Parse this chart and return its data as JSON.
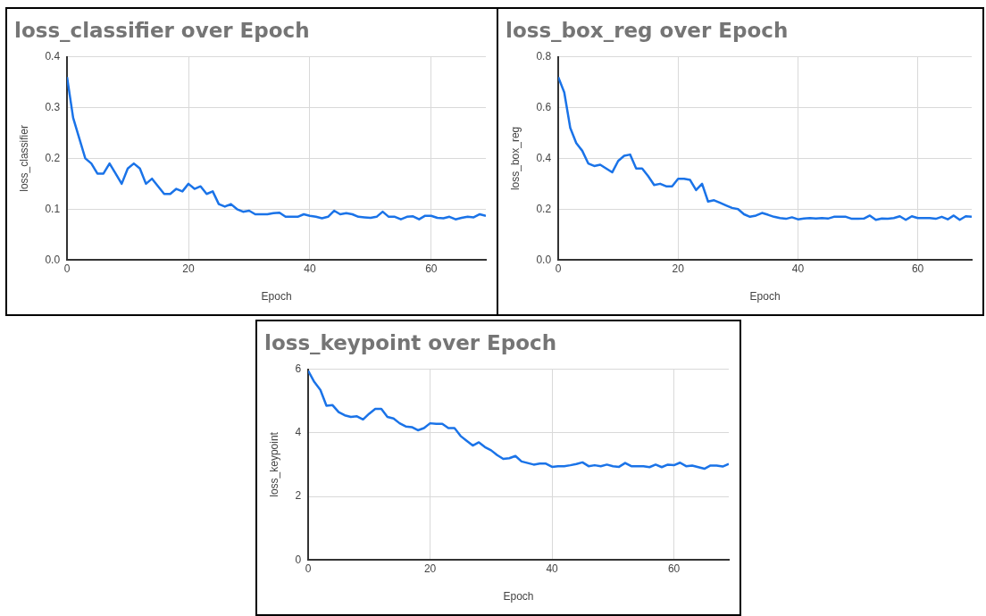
{
  "chart_data": [
    {
      "type": "line",
      "title": "loss_classifier over Epoch",
      "xlabel": "Epoch",
      "ylabel": "loss_classifier",
      "xlim": [
        0,
        69
      ],
      "xticks": [
        0,
        20,
        40,
        60
      ],
      "ylim": [
        0,
        0.4
      ],
      "yticks": [
        {
          "value": 0,
          "label": "0.0"
        },
        {
          "value": 0.1,
          "label": "0.1"
        },
        {
          "value": 0.2,
          "label": "0.2"
        },
        {
          "value": 0.3,
          "label": "0.3"
        },
        {
          "value": 0.4,
          "label": "0.4"
        }
      ],
      "grid": true,
      "legend": false,
      "marker": "none",
      "line_style": "solid",
      "x": [
        0,
        1,
        2,
        3,
        4,
        5,
        6,
        7,
        8,
        9,
        10,
        11,
        12,
        13,
        14,
        15,
        16,
        17,
        18,
        19,
        20,
        21,
        22,
        23,
        24,
        25,
        26,
        27,
        28,
        29,
        30,
        31,
        32,
        33,
        34,
        35,
        36,
        37,
        38,
        39,
        40,
        41,
        42,
        43,
        44,
        45,
        46,
        47,
        48,
        49,
        50,
        51,
        52,
        53,
        54,
        55,
        56,
        57,
        58,
        59,
        60,
        61,
        62,
        63,
        64,
        65,
        66,
        67,
        68,
        69
      ],
      "series": [
        {
          "color": "#1a73e8",
          "values": [
            0.36,
            0.28,
            0.24,
            0.2,
            0.19,
            0.17,
            0.17,
            0.19,
            0.17,
            0.15,
            0.18,
            0.19,
            0.18,
            0.15,
            0.16,
            0.145,
            0.13,
            0.13,
            0.14,
            0.135,
            0.15,
            0.14,
            0.145,
            0.13,
            0.135,
            0.11,
            0.105,
            0.11,
            0.1,
            0.095,
            0.097,
            0.09,
            0.09,
            0.09,
            0.092,
            0.093,
            0.085,
            0.085,
            0.085,
            0.09,
            0.087,
            0.085,
            0.082,
            0.085,
            0.097,
            0.09,
            0.092,
            0.09,
            0.085,
            0.084,
            0.083,
            0.085,
            0.095,
            0.085,
            0.085,
            0.08,
            0.085,
            0.086,
            0.08,
            0.087,
            0.087,
            0.083,
            0.082,
            0.085,
            0.08,
            0.083,
            0.085,
            0.084,
            0.09,
            0.087
          ]
        }
      ]
    },
    {
      "type": "line",
      "title": "loss_box_reg over Epoch",
      "xlabel": "Epoch",
      "ylabel": "loss_box_reg",
      "xlim": [
        0,
        69
      ],
      "xticks": [
        0,
        20,
        40,
        60
      ],
      "ylim": [
        0,
        0.8
      ],
      "yticks": [
        {
          "value": 0,
          "label": "0.0"
        },
        {
          "value": 0.2,
          "label": "0.2"
        },
        {
          "value": 0.4,
          "label": "0.4"
        },
        {
          "value": 0.6,
          "label": "0.6"
        },
        {
          "value": 0.8,
          "label": "0.8"
        }
      ],
      "grid": true,
      "legend": false,
      "marker": "none",
      "line_style": "solid",
      "x": [
        0,
        1,
        2,
        3,
        4,
        5,
        6,
        7,
        8,
        9,
        10,
        11,
        12,
        13,
        14,
        15,
        16,
        17,
        18,
        19,
        20,
        21,
        22,
        23,
        24,
        25,
        26,
        27,
        28,
        29,
        30,
        31,
        32,
        33,
        34,
        35,
        36,
        37,
        38,
        39,
        40,
        41,
        42,
        43,
        44,
        45,
        46,
        47,
        48,
        49,
        50,
        51,
        52,
        53,
        54,
        55,
        56,
        57,
        58,
        59,
        60,
        61,
        62,
        63,
        64,
        65,
        66,
        67,
        68,
        69
      ],
      "series": [
        {
          "color": "#1a73e8",
          "values": [
            0.72,
            0.66,
            0.52,
            0.46,
            0.43,
            0.38,
            0.37,
            0.375,
            0.36,
            0.345,
            0.39,
            0.41,
            0.415,
            0.36,
            0.36,
            0.33,
            0.295,
            0.3,
            0.29,
            0.29,
            0.32,
            0.32,
            0.315,
            0.275,
            0.3,
            0.23,
            0.235,
            0.225,
            0.215,
            0.205,
            0.2,
            0.18,
            0.17,
            0.175,
            0.185,
            0.178,
            0.17,
            0.165,
            0.162,
            0.168,
            0.16,
            0.163,
            0.165,
            0.163,
            0.165,
            0.163,
            0.17,
            0.17,
            0.17,
            0.162,
            0.162,
            0.163,
            0.175,
            0.158,
            0.163,
            0.162,
            0.165,
            0.172,
            0.158,
            0.172,
            0.165,
            0.165,
            0.165,
            0.162,
            0.17,
            0.16,
            0.175,
            0.158,
            0.172,
            0.17
          ]
        }
      ]
    },
    {
      "type": "line",
      "title": "loss_keypoint over Epoch",
      "xlabel": "Epoch",
      "ylabel": "loss_keypoint",
      "xlim": [
        0,
        69
      ],
      "xticks": [
        0,
        20,
        40,
        60
      ],
      "ylim": [
        0,
        6
      ],
      "yticks": [
        0,
        2,
        4,
        6
      ],
      "grid": true,
      "legend": false,
      "marker": "none",
      "line_style": "solid",
      "x": [
        0,
        1,
        2,
        3,
        4,
        5,
        6,
        7,
        8,
        9,
        10,
        11,
        12,
        13,
        14,
        15,
        16,
        17,
        18,
        19,
        20,
        21,
        22,
        23,
        24,
        25,
        26,
        27,
        28,
        29,
        30,
        31,
        32,
        33,
        34,
        35,
        36,
        37,
        38,
        39,
        40,
        41,
        42,
        43,
        44,
        45,
        46,
        47,
        48,
        49,
        50,
        51,
        52,
        53,
        54,
        55,
        56,
        57,
        58,
        59,
        60,
        61,
        62,
        63,
        64,
        65,
        66,
        67,
        68,
        69
      ],
      "series": [
        {
          "color": "#1a73e8",
          "values": [
            5.95,
            5.6,
            5.35,
            4.85,
            4.87,
            4.65,
            4.55,
            4.5,
            4.52,
            4.42,
            4.6,
            4.75,
            4.75,
            4.5,
            4.45,
            4.3,
            4.2,
            4.18,
            4.08,
            4.15,
            4.3,
            4.28,
            4.28,
            4.15,
            4.15,
            3.9,
            3.75,
            3.6,
            3.7,
            3.55,
            3.45,
            3.3,
            3.18,
            3.2,
            3.27,
            3.1,
            3.05,
            3.0,
            3.03,
            3.03,
            2.93,
            2.95,
            2.95,
            2.98,
            3.02,
            3.07,
            2.95,
            2.98,
            2.95,
            3.0,
            2.95,
            2.93,
            3.05,
            2.95,
            2.95,
            2.95,
            2.92,
            3.0,
            2.92,
            3.0,
            2.98,
            3.06,
            2.95,
            2.97,
            2.92,
            2.87,
            2.97,
            2.97,
            2.94,
            3.02
          ]
        }
      ]
    }
  ]
}
